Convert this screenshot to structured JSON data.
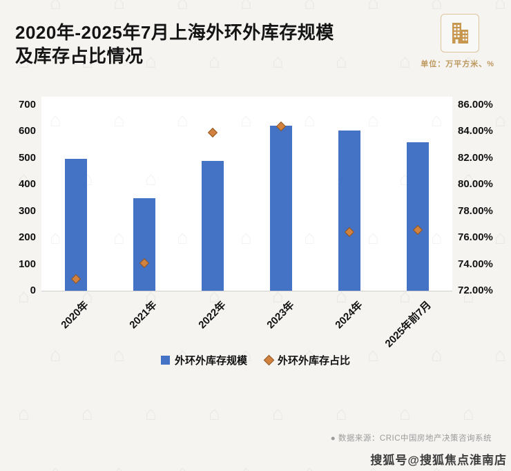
{
  "header": {
    "title_line1": "2020年-2025年7月上海外环外库存规模",
    "title_line2": "及库存占比情况",
    "unit_note": "单位：万平方米、%"
  },
  "chart_data": {
    "type": "bar",
    "subtype": "combo-bar-scatter",
    "title": "2020年-2025年7月上海外环外库存规模及库存占比情况",
    "categories": [
      "2020年",
      "2021年",
      "2022年",
      "2023年",
      "2024年",
      "2025年前7月"
    ],
    "series": [
      {
        "name": "外环外库存规模",
        "type": "bar",
        "axis": "left",
        "color": "#4472c4",
        "values": [
          498,
          350,
          489,
          622,
          605,
          560
        ]
      },
      {
        "name": "外环外库存占比",
        "type": "scatter",
        "axis": "right",
        "color": "#d2823f",
        "values_percent": [
          72.9,
          74.1,
          83.9,
          84.4,
          76.4,
          76.6
        ]
      }
    ],
    "left_axis": {
      "min": 0,
      "max": 700,
      "step": 100,
      "ticks": [
        "700",
        "600",
        "500",
        "400",
        "300",
        "200",
        "100",
        "0"
      ]
    },
    "right_axis": {
      "min": 72,
      "max": 86,
      "step": 2,
      "ticks": [
        "86.00%",
        "84.00%",
        "82.00%",
        "80.00%",
        "78.00%",
        "76.00%",
        "74.00%",
        "72.00%"
      ]
    },
    "legend": [
      {
        "label": "外环外库存规模",
        "marker": "square",
        "color": "#4472c4"
      },
      {
        "label": "外环外库存占比",
        "marker": "diamond",
        "color": "#d2823f"
      }
    ],
    "legend_position": "bottom",
    "gridlines": false
  },
  "footer": {
    "source": "●  数据来源：CRIC中国房地产决策咨询系统",
    "watermark": "搜狐号@搜狐焦点淮南店"
  }
}
